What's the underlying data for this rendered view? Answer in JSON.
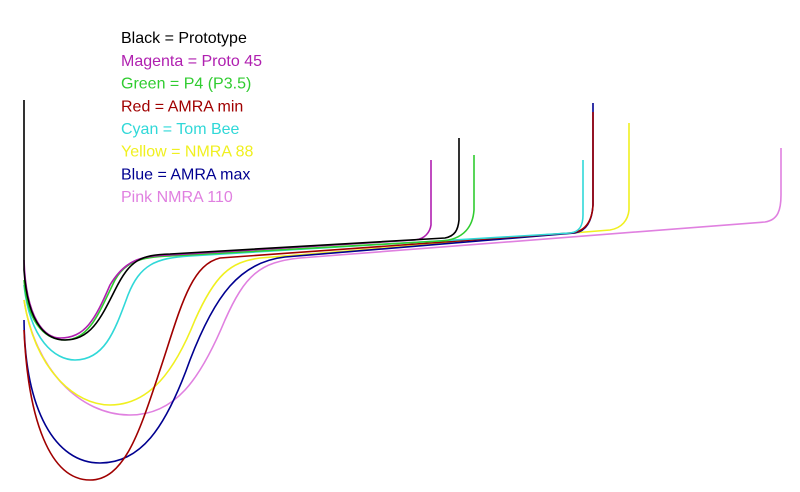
{
  "legend": [
    {
      "text": "Black = Prototype",
      "color": "#000000"
    },
    {
      "text": "Magenta = Proto 45",
      "color": "#b020b0"
    },
    {
      "text": "Green = P4 (P3.5)",
      "color": "#30cc30"
    },
    {
      "text": "Red = AMRA min",
      "color": "#a00000"
    },
    {
      "text": "Cyan = Tom Bee",
      "color": "#30d8d8"
    },
    {
      "text": "Yellow = NMRA 88",
      "color": "#f0f020"
    },
    {
      "text": "Blue = AMRA max",
      "color": "#000090"
    },
    {
      "text": "Pink NMRA 110",
      "color": "#e080e0"
    }
  ]
}
